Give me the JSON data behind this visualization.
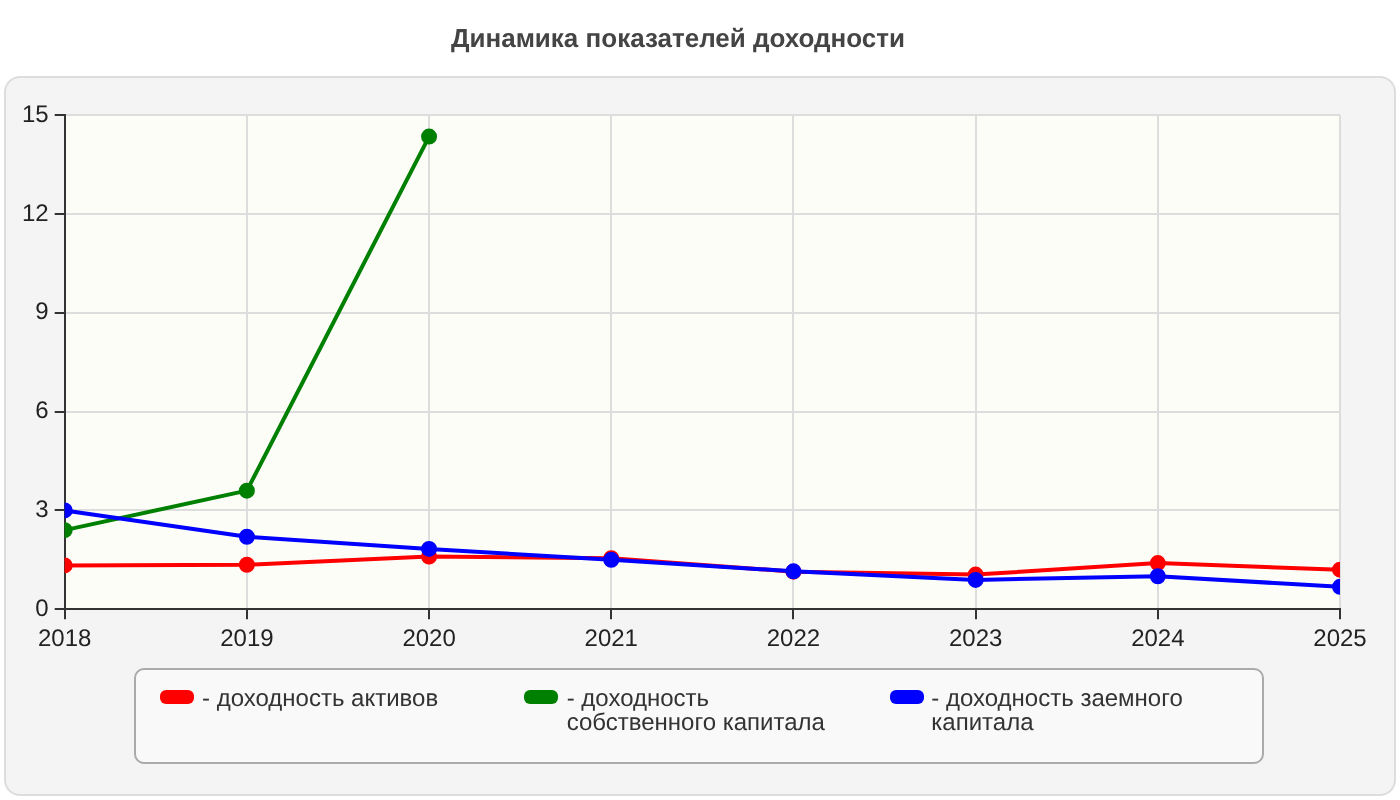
{
  "chart_data": {
    "type": "line",
    "title": "Динамика показателей доходности",
    "x": [
      2018,
      2019,
      2020,
      2021,
      2022,
      2023,
      2024,
      2025
    ],
    "xlim": [
      2018,
      2025
    ],
    "xticks": [
      2018,
      2019,
      2020,
      2021,
      2022,
      2023,
      2024,
      2025
    ],
    "ylim": [
      0,
      15
    ],
    "yticks": [
      0,
      3,
      6,
      9,
      12,
      15
    ],
    "grid": true,
    "legend": "bottom",
    "marker": "circle",
    "line_style": "solid",
    "series": [
      {
        "name": "- доходность активов",
        "color": "#ff0000",
        "values": [
          1.33,
          1.35,
          1.6,
          1.55,
          1.14,
          1.05,
          1.4,
          1.2
        ]
      },
      {
        "name": "- доходность собственного капитала",
        "color": "#008000",
        "values": [
          2.4,
          3.6,
          14.35,
          null,
          null,
          null,
          null,
          null
        ]
      },
      {
        "name": "- доходность заемного капитала",
        "color": "#0000ff",
        "values": [
          3.0,
          2.2,
          1.83,
          1.5,
          1.15,
          0.89,
          1.0,
          0.68
        ]
      }
    ]
  }
}
